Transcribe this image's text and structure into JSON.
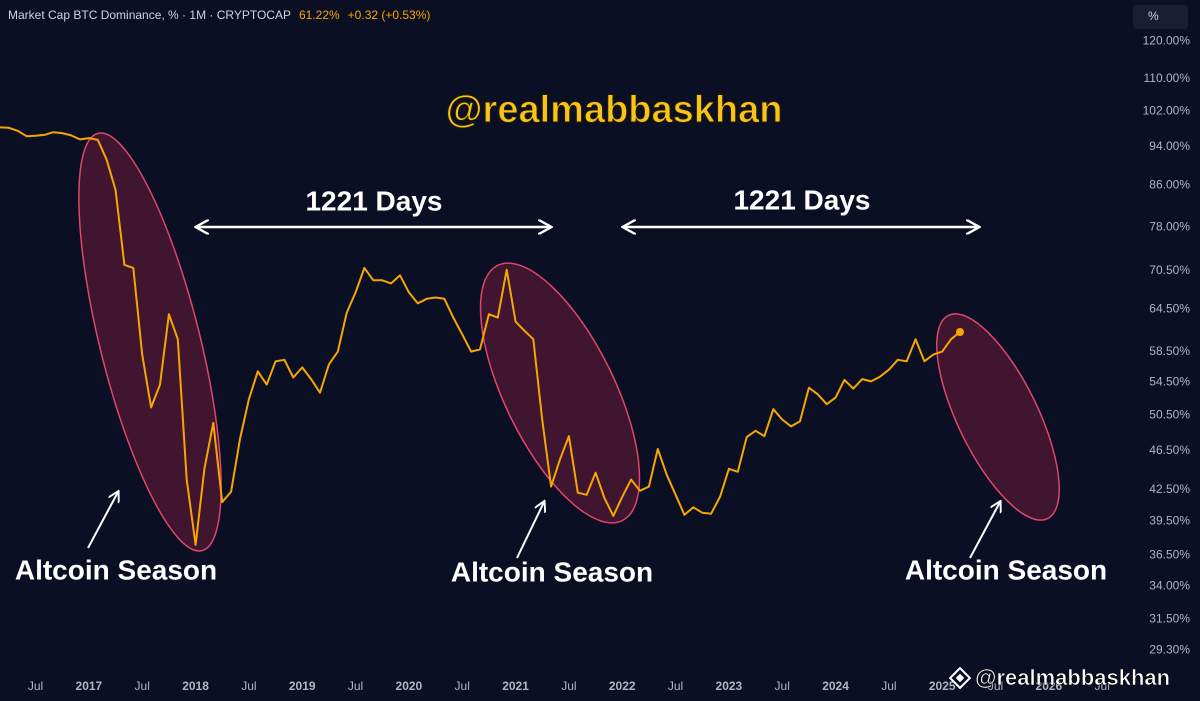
{
  "header": {
    "title": "Market Cap BTC Dominance, % · 1M · CRYPTOCAP",
    "value": "61.22%",
    "change": "+0.32 (+0.53%)",
    "unit_button": "%"
  },
  "annotations": {
    "watermark": "@realmabbaskhan",
    "days": [
      "1221 Days",
      "1221 Days"
    ],
    "season": [
      "Altcoin Season",
      "Altcoin Season",
      "Altcoin Season"
    ],
    "footer_watermark": "@realmabbaskhan"
  },
  "chart_data": {
    "type": "line",
    "log_scale": true,
    "grid": false,
    "xlim": [
      "2016-03",
      "2026-09"
    ],
    "ylim": [
      28,
      132
    ],
    "yticks": [
      {
        "value": 120,
        "label": "120.00%"
      },
      {
        "value": 110,
        "label": "110.00%"
      },
      {
        "value": 102,
        "label": "102.00%"
      },
      {
        "value": 94,
        "label": "94.00%"
      },
      {
        "value": 86,
        "label": "86.00%"
      },
      {
        "value": 78,
        "label": "78.00%"
      },
      {
        "value": 70.5,
        "label": "70.50%"
      },
      {
        "value": 64.5,
        "label": "64.50%"
      },
      {
        "value": 58.5,
        "label": "58.50%"
      },
      {
        "value": 54.5,
        "label": "54.50%"
      },
      {
        "value": 50.5,
        "label": "50.50%"
      },
      {
        "value": 46.5,
        "label": "46.50%"
      },
      {
        "value": 42.5,
        "label": "42.50%"
      },
      {
        "value": 39.5,
        "label": "39.50%"
      },
      {
        "value": 36.5,
        "label": "36.50%"
      },
      {
        "value": 34,
        "label": "34.00%"
      },
      {
        "value": 31.5,
        "label": "31.50%"
      },
      {
        "value": 29.3,
        "label": "29.30%"
      }
    ],
    "xticks": [
      {
        "value": "2016-07",
        "label": "Jul"
      },
      {
        "value": "2017-01",
        "label": "2017"
      },
      {
        "value": "2017-07",
        "label": "Jul"
      },
      {
        "value": "2018-01",
        "label": "2018"
      },
      {
        "value": "2018-07",
        "label": "Jul"
      },
      {
        "value": "2019-01",
        "label": "2019"
      },
      {
        "value": "2019-07",
        "label": "Jul"
      },
      {
        "value": "2020-01",
        "label": "2020"
      },
      {
        "value": "2020-07",
        "label": "Jul"
      },
      {
        "value": "2021-01",
        "label": "2021"
      },
      {
        "value": "2021-07",
        "label": "Jul"
      },
      {
        "value": "2022-01",
        "label": "2022"
      },
      {
        "value": "2022-07",
        "label": "Jul"
      },
      {
        "value": "2023-01",
        "label": "2023"
      },
      {
        "value": "2023-07",
        "label": "Jul"
      },
      {
        "value": "2024-01",
        "label": "2024"
      },
      {
        "value": "2024-07",
        "label": "Jul"
      },
      {
        "value": "2025-01",
        "label": "2025"
      },
      {
        "value": "2025-07",
        "label": "Jul"
      },
      {
        "value": "2026-01",
        "label": "2026"
      },
      {
        "value": "2026-07",
        "label": "Jul"
      }
    ],
    "series": [
      {
        "name": "BTC Dominance",
        "color": "#f7a600",
        "x": [
          "2016-03",
          "2016-04",
          "2016-05",
          "2016-06",
          "2016-07",
          "2016-08",
          "2016-09",
          "2016-10",
          "2016-11",
          "2016-12",
          "2017-01",
          "2017-02",
          "2017-03",
          "2017-04",
          "2017-05",
          "2017-06",
          "2017-07",
          "2017-08",
          "2017-09",
          "2017-10",
          "2017-11",
          "2017-12",
          "2018-01",
          "2018-02",
          "2018-03",
          "2018-04",
          "2018-05",
          "2018-06",
          "2018-07",
          "2018-08",
          "2018-09",
          "2018-10",
          "2018-11",
          "2018-12",
          "2019-01",
          "2019-02",
          "2019-03",
          "2019-04",
          "2019-05",
          "2019-06",
          "2019-07",
          "2019-08",
          "2019-09",
          "2019-10",
          "2019-11",
          "2019-12",
          "2020-01",
          "2020-02",
          "2020-03",
          "2020-04",
          "2020-05",
          "2020-06",
          "2020-07",
          "2020-08",
          "2020-09",
          "2020-10",
          "2020-11",
          "2020-12",
          "2021-01",
          "2021-02",
          "2021-03",
          "2021-04",
          "2021-05",
          "2021-06",
          "2021-07",
          "2021-08",
          "2021-09",
          "2021-10",
          "2021-11",
          "2021-12",
          "2022-01",
          "2022-02",
          "2022-03",
          "2022-04",
          "2022-05",
          "2022-06",
          "2022-07",
          "2022-08",
          "2022-09",
          "2022-10",
          "2022-11",
          "2022-12",
          "2023-01",
          "2023-02",
          "2023-03",
          "2023-04",
          "2023-05",
          "2023-06",
          "2023-07",
          "2023-08",
          "2023-09",
          "2023-10",
          "2023-11",
          "2023-12",
          "2024-01",
          "2024-02",
          "2024-03",
          "2024-04",
          "2024-05",
          "2024-06",
          "2024-07",
          "2024-08",
          "2024-09",
          "2024-10",
          "2024-11",
          "2024-12",
          "2025-01",
          "2025-02",
          "2025-03"
        ],
        "values": [
          98.3,
          98.2,
          97.5,
          96.3,
          96.4,
          96.6,
          97.2,
          97.0,
          96.5,
          95.6,
          95.9,
          95.5,
          91.2,
          85,
          71.5,
          71,
          58.1,
          51.4,
          54.2,
          63.8,
          60.2,
          43.5,
          37.4,
          44.6,
          49.6,
          41.3,
          42.3,
          47.8,
          52.4,
          55.9,
          54.2,
          57.2,
          57.4,
          55.1,
          56.4,
          54.9,
          53.2,
          56.8,
          58.5,
          64,
          67.1,
          71,
          69,
          69,
          68.5,
          69.8,
          67.1,
          65.4,
          66.1,
          66.3,
          66.1,
          63.3,
          60.9,
          58.5,
          58.8,
          63.8,
          63.3,
          70.7,
          62.7,
          61.4,
          60.2,
          50,
          42.8,
          45.6,
          48.1,
          42.2,
          42,
          44.2,
          41.7,
          40,
          41.8,
          43.5,
          42.4,
          42.8,
          46.7,
          44,
          42,
          40.1,
          40.8,
          40.3,
          40.2,
          41.8,
          44.6,
          44.3,
          48,
          48.7,
          48.1,
          51.2,
          50,
          49.2,
          49.8,
          53.8,
          53,
          51.8,
          52.6,
          54.8,
          53.7,
          54.9,
          54.6,
          55.2,
          56.1,
          57.4,
          57.2,
          60.2,
          57.2,
          58.1,
          58.5,
          60.2,
          61.22
        ]
      }
    ]
  }
}
